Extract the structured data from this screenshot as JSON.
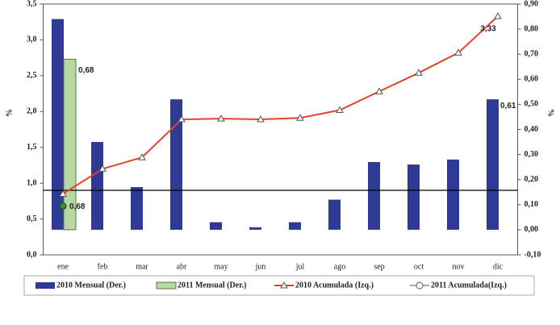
{
  "chart_data": {
    "type": "bar-line",
    "y_label": "%",
    "y2_label": "%",
    "categories": [
      "ene",
      "feb",
      "mar",
      "abr",
      "may",
      "jun",
      "jul",
      "ago",
      "sep",
      "oct",
      "nov",
      "dic"
    ],
    "ylim": [
      0,
      3.5
    ],
    "yticks": [
      {
        "value": 0,
        "label": "0,0"
      },
      {
        "value": 0.5,
        "label": "0,5"
      },
      {
        "value": 1,
        "label": "1,0"
      },
      {
        "value": 1.5,
        "label": "1,5"
      },
      {
        "value": 2,
        "label": "2,0"
      },
      {
        "value": 2.5,
        "label": "2,5"
      },
      {
        "value": 3,
        "label": "3,0"
      },
      {
        "value": 3.5,
        "label": "3,5"
      }
    ],
    "y2lim": [
      -0.1,
      0.9
    ],
    "y2ticks": [
      {
        "value": -0.1,
        "label": "-0,10"
      },
      {
        "value": 0,
        "label": "0,00"
      },
      {
        "value": 0.1,
        "label": "0,10"
      },
      {
        "value": 0.2,
        "label": "0,20"
      },
      {
        "value": 0.3,
        "label": "0,30"
      },
      {
        "value": 0.4,
        "label": "0,40"
      },
      {
        "value": 0.5,
        "label": "0,50"
      },
      {
        "value": 0.6,
        "label": "0,60"
      },
      {
        "value": 0.7,
        "label": "0,70"
      },
      {
        "value": 0.8,
        "label": "0,80"
      },
      {
        "value": 0.9,
        "label": "0,90"
      }
    ],
    "reference_line": 0.9,
    "series": [
      {
        "name": "2010 Mensual (Der.)",
        "kind": "bar",
        "axis": "y2",
        "color": "#2e3a94",
        "values": [
          0.84,
          0.35,
          0.17,
          0.52,
          0.03,
          0.01,
          0.03,
          0.12,
          0.27,
          0.26,
          0.28,
          0.52
        ]
      },
      {
        "name": "2011 Mensual (Der.)",
        "kind": "bar",
        "axis": "y2",
        "color": "#b7d7a3",
        "values": [
          0.68,
          null,
          null,
          null,
          null,
          null,
          null,
          null,
          null,
          null,
          null,
          null
        ],
        "value_labels": [
          "0,68",
          null,
          null,
          null,
          null,
          null,
          null,
          null,
          null,
          null,
          null,
          null
        ]
      },
      {
        "name": "2010 Acumulada (Izq.)",
        "kind": "line",
        "marker": "triangle",
        "color": "#e8402a",
        "values": [
          0.85,
          1.2,
          1.36,
          1.89,
          1.9,
          1.89,
          1.91,
          2.02,
          2.28,
          2.54,
          2.82,
          3.33
        ],
        "value_labels": [
          null,
          null,
          null,
          null,
          null,
          null,
          null,
          null,
          null,
          null,
          null,
          "3,33"
        ]
      },
      {
        "name": "2011 Acumulada(Izq.)",
        "kind": "line",
        "marker": "circle",
        "color": "#3a8a3a",
        "values": [
          0.68,
          null,
          null,
          null,
          null,
          null,
          null,
          null,
          null,
          null,
          null,
          null
        ],
        "value_labels": [
          "0,68",
          null,
          null,
          null,
          null,
          null,
          null,
          null,
          null,
          null,
          null,
          null
        ]
      }
    ],
    "annotations": [
      "0,61"
    ]
  }
}
